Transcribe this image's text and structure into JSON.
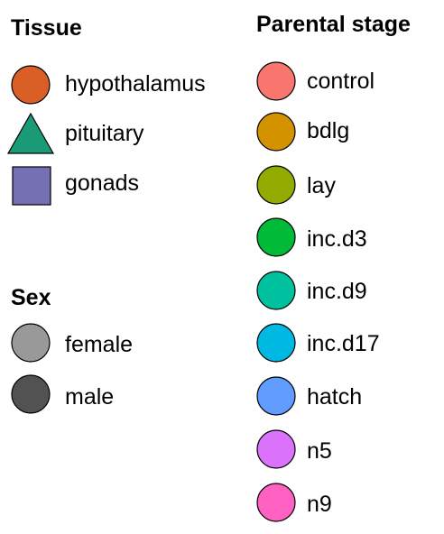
{
  "tissue": {
    "title": "Tissue",
    "items": [
      {
        "label": "hypothalamus",
        "shape": "circle",
        "color": "#d95f27"
      },
      {
        "label": "pituitary",
        "shape": "triangle",
        "color": "#1b9a78"
      },
      {
        "label": "gonads",
        "shape": "square",
        "color": "#7570b3"
      }
    ]
  },
  "sex": {
    "title": "Sex",
    "items": [
      {
        "label": "female",
        "shape": "circle",
        "color": "#999999"
      },
      {
        "label": "male",
        "shape": "circle",
        "color": "#525252"
      }
    ]
  },
  "parental_stage": {
    "title": "Parental stage",
    "items": [
      {
        "label": "control",
        "shape": "circle",
        "color": "#f8766d"
      },
      {
        "label": "bdlg",
        "shape": "circle",
        "color": "#d39200"
      },
      {
        "label": "lay",
        "shape": "circle",
        "color": "#93aa00"
      },
      {
        "label": "inc.d3",
        "shape": "circle",
        "color": "#00ba38"
      },
      {
        "label": "inc.d9",
        "shape": "circle",
        "color": "#00c19f"
      },
      {
        "label": "inc.d17",
        "shape": "circle",
        "color": "#00b9e3"
      },
      {
        "label": "hatch",
        "shape": "circle",
        "color": "#619cff"
      },
      {
        "label": "n5",
        "shape": "circle",
        "color": "#db72fb"
      },
      {
        "label": "n9",
        "shape": "circle",
        "color": "#ff61c3"
      }
    ]
  }
}
